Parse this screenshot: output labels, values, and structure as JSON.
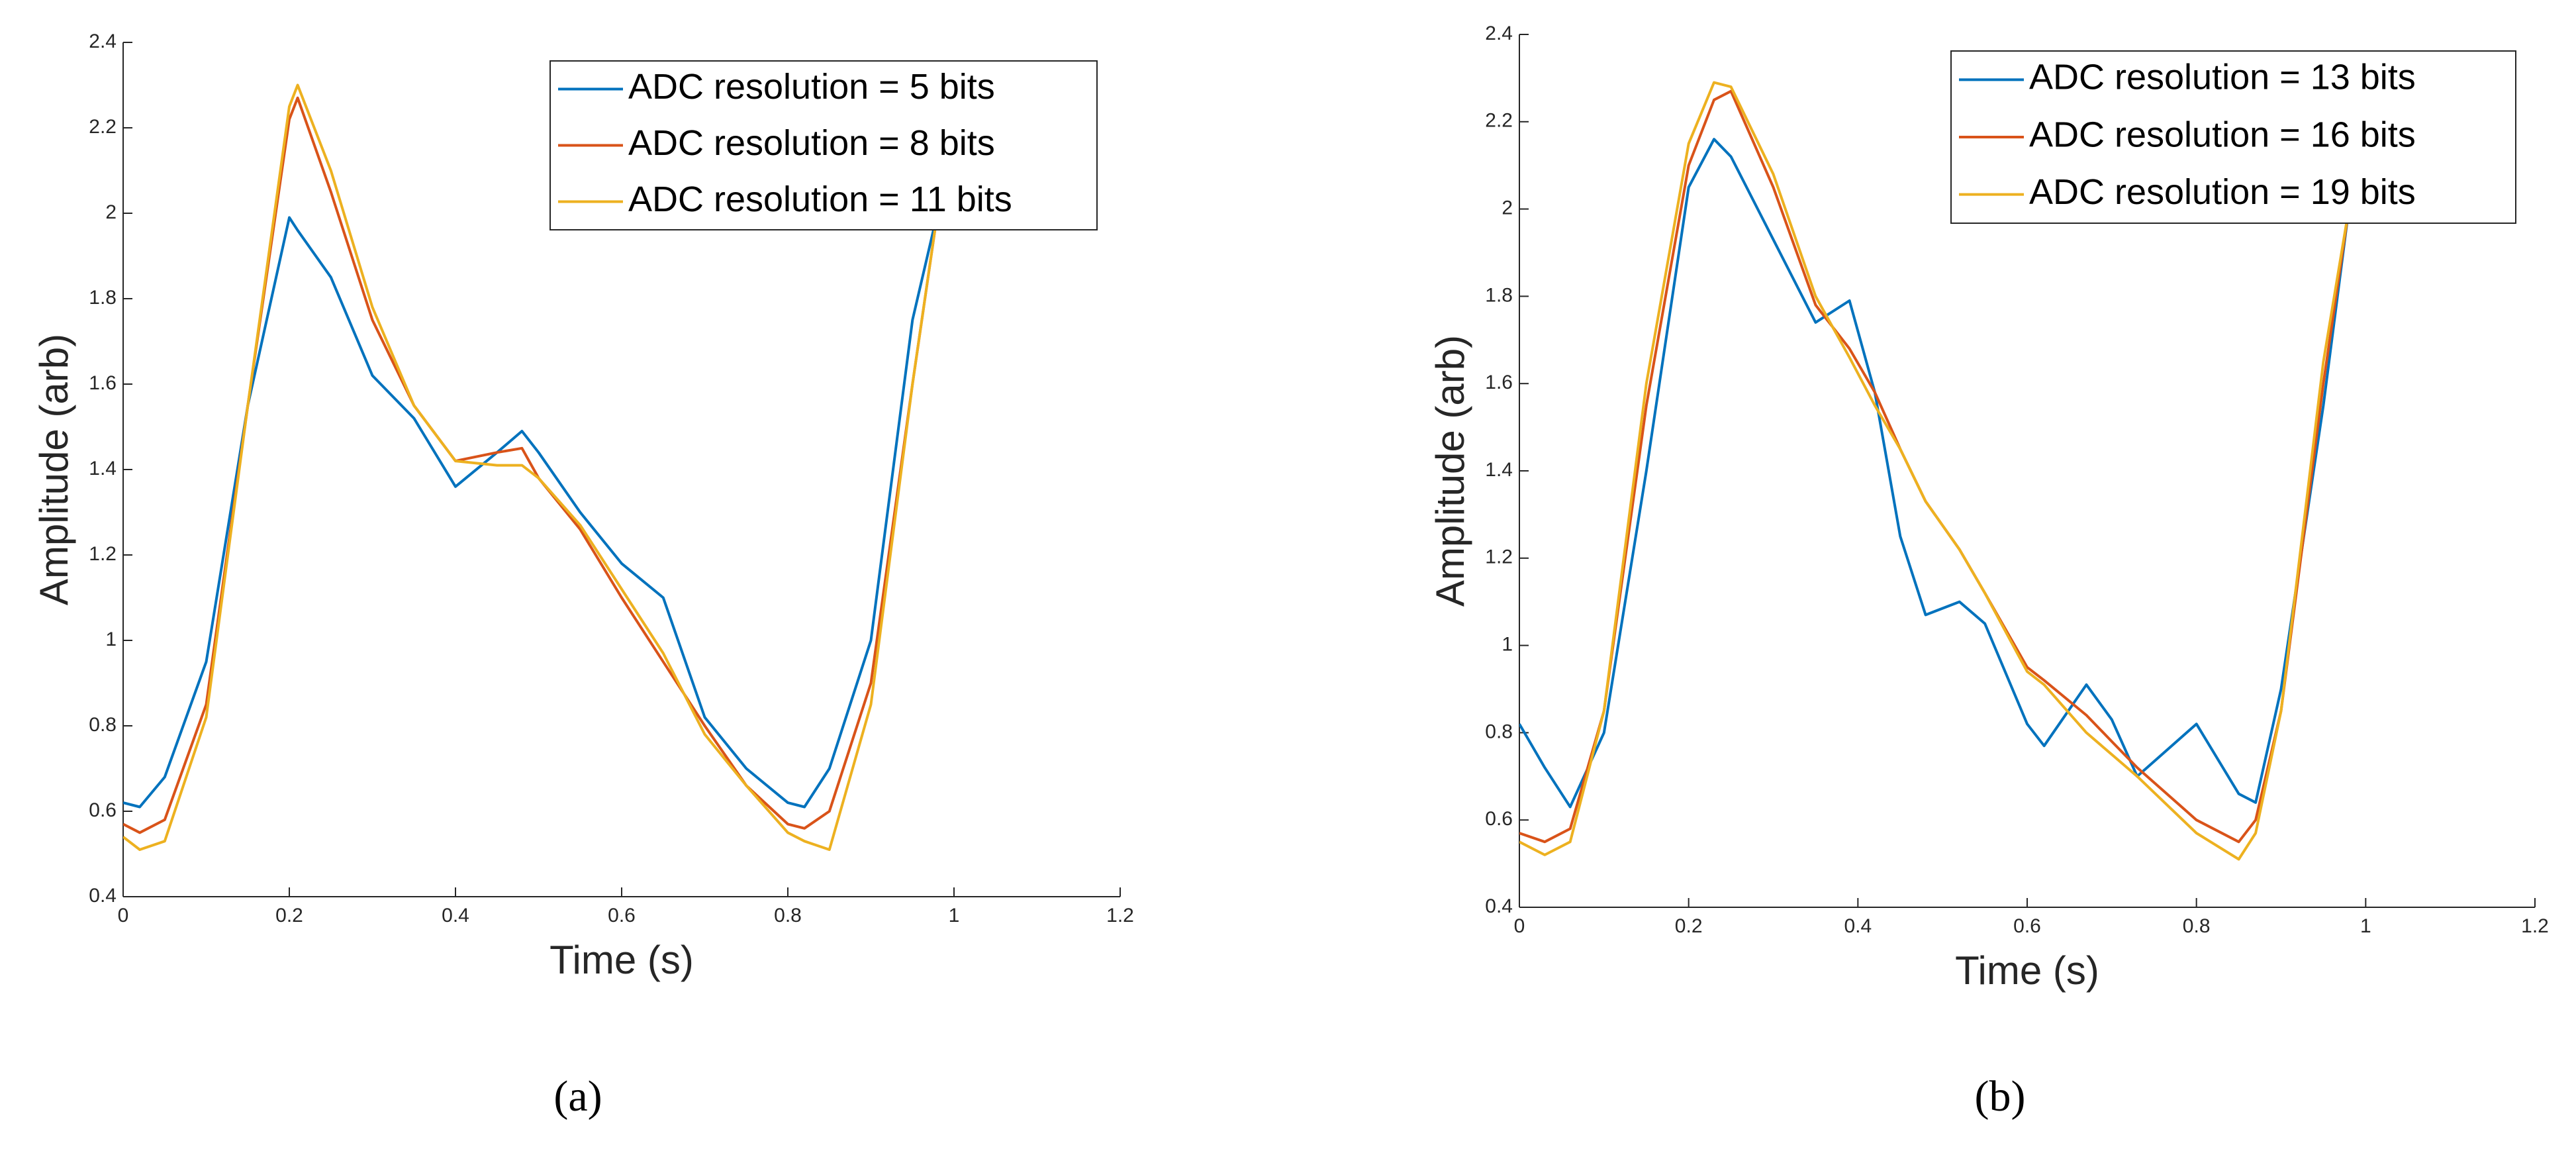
{
  "chart_data": [
    {
      "type": "line",
      "label": "(a)",
      "xlabel": "Time (s)",
      "ylabel": "Amplitude (arb)",
      "x": [
        0,
        0.02,
        0.05,
        0.1,
        0.15,
        0.2,
        0.21,
        0.25,
        0.3,
        0.35,
        0.4,
        0.45,
        0.48,
        0.5,
        0.55,
        0.6,
        0.65,
        0.7,
        0.75,
        0.8,
        0.82,
        0.85,
        0.9,
        0.95,
        0.98
      ],
      "series": [
        {
          "name": "ADC resolution = 5 bits",
          "color": "#0072bd",
          "values": [
            0.62,
            0.61,
            0.68,
            0.95,
            1.55,
            1.99,
            1.96,
            1.85,
            1.62,
            1.52,
            1.36,
            1.44,
            1.49,
            1.44,
            1.3,
            1.18,
            1.1,
            0.82,
            0.7,
            0.62,
            0.61,
            0.7,
            1.0,
            1.75,
            2.0
          ]
        },
        {
          "name": "ADC resolution = 8 bits",
          "color": "#d95319",
          "values": [
            0.57,
            0.55,
            0.58,
            0.85,
            1.55,
            2.22,
            2.27,
            2.05,
            1.75,
            1.55,
            1.42,
            1.44,
            1.45,
            1.38,
            1.26,
            1.1,
            0.95,
            0.8,
            0.66,
            0.57,
            0.56,
            0.6,
            0.9,
            1.6,
            2.0
          ]
        },
        {
          "name": "ADC resolution = 11 bits",
          "color": "#edb120",
          "values": [
            0.54,
            0.51,
            0.53,
            0.82,
            1.55,
            2.25,
            2.3,
            2.1,
            1.78,
            1.55,
            1.42,
            1.41,
            1.41,
            1.38,
            1.27,
            1.12,
            0.97,
            0.78,
            0.66,
            0.55,
            0.53,
            0.51,
            0.85,
            1.6,
            2.0
          ]
        }
      ],
      "xlim": [
        0,
        1.2
      ],
      "xticks": [
        0,
        0.2,
        0.4,
        0.6,
        0.8,
        1,
        1.2
      ],
      "ylim": [
        0.4,
        2.4
      ],
      "yticks": [
        0.4,
        0.6,
        0.8,
        1,
        1.2,
        1.4,
        1.6,
        1.8,
        2,
        2.2,
        2.4
      ],
      "legend": "upper right"
    },
    {
      "type": "line",
      "label": "(b)",
      "xlabel": "Time (s)",
      "ylabel": "Amplitude (arb)",
      "x": [
        0,
        0.03,
        0.06,
        0.1,
        0.15,
        0.2,
        0.23,
        0.25,
        0.3,
        0.35,
        0.39,
        0.42,
        0.45,
        0.48,
        0.52,
        0.55,
        0.6,
        0.62,
        0.67,
        0.7,
        0.73,
        0.8,
        0.85,
        0.87,
        0.9,
        0.95,
        0.98
      ],
      "series": [
        {
          "name": "ADC resolution = 13 bits",
          "color": "#0072bd",
          "values": [
            0.82,
            0.72,
            0.63,
            0.8,
            1.4,
            2.05,
            2.16,
            2.12,
            1.93,
            1.74,
            1.79,
            1.58,
            1.25,
            1.07,
            1.1,
            1.05,
            0.82,
            0.77,
            0.91,
            0.83,
            0.7,
            0.82,
            0.66,
            0.64,
            0.9,
            1.55,
            2.0
          ]
        },
        {
          "name": "ADC resolution = 16 bits",
          "color": "#d95319",
          "values": [
            0.57,
            0.55,
            0.58,
            0.85,
            1.55,
            2.1,
            2.25,
            2.27,
            2.05,
            1.78,
            1.68,
            1.58,
            1.45,
            1.33,
            1.22,
            1.12,
            0.95,
            0.92,
            0.84,
            0.78,
            0.72,
            0.6,
            0.55,
            0.6,
            0.85,
            1.6,
            2.0
          ]
        },
        {
          "name": "ADC resolution = 19 bits",
          "color": "#edb120",
          "values": [
            0.55,
            0.52,
            0.55,
            0.85,
            1.6,
            2.15,
            2.29,
            2.28,
            2.08,
            1.8,
            1.66,
            1.55,
            1.45,
            1.33,
            1.22,
            1.12,
            0.94,
            0.91,
            0.8,
            0.75,
            0.7,
            0.57,
            0.51,
            0.57,
            0.85,
            1.65,
            2.0
          ]
        }
      ],
      "xlim": [
        0,
        1.2
      ],
      "xticks": [
        0,
        0.2,
        0.4,
        0.6,
        0.8,
        1,
        1.2
      ],
      "ylim": [
        0.4,
        2.4
      ],
      "yticks": [
        0.4,
        0.6,
        0.8,
        1,
        1.2,
        1.4,
        1.6,
        1.8,
        2,
        2.2,
        2.4
      ],
      "legend": "upper right"
    }
  ]
}
